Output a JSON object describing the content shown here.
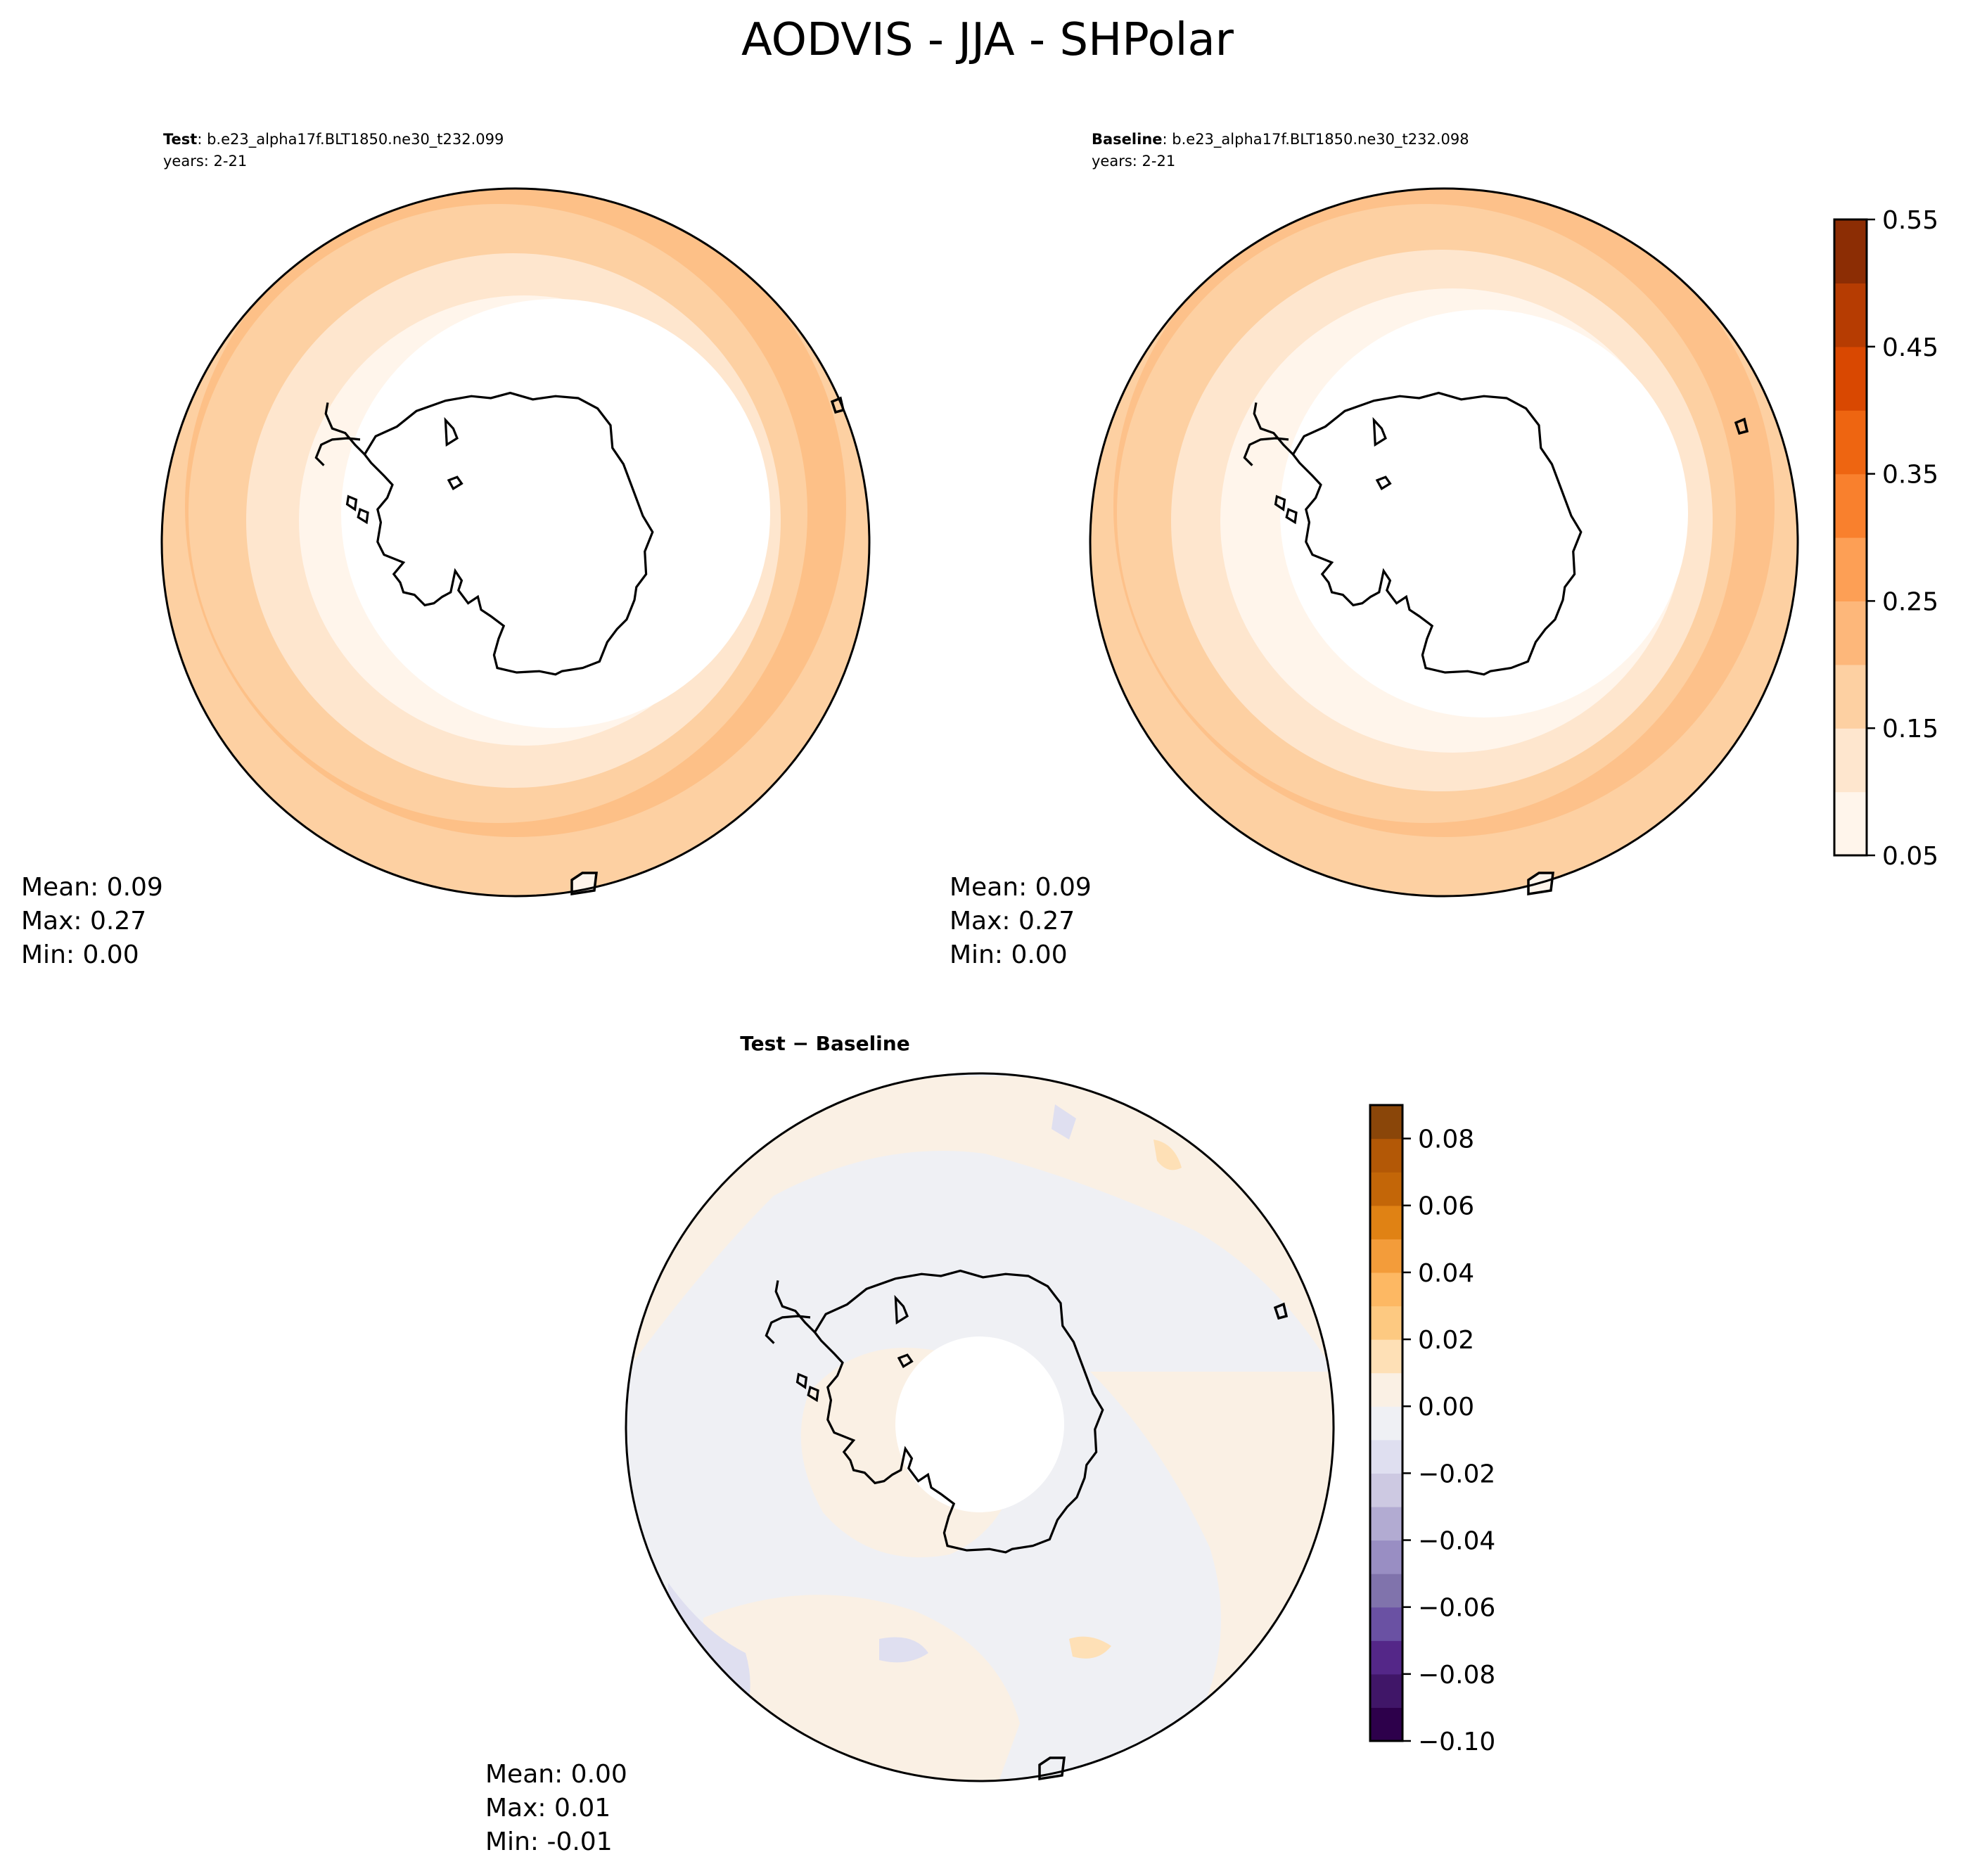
{
  "title": "AODVIS - JJA - SHPolar",
  "panels": [
    {
      "id": "test",
      "label_bold": "Test",
      "label_rest": ": b.e23_alpha17f.BLT1850.ne30_t232.099",
      "years": "years: 2-21",
      "stats": {
        "mean": "Mean:  0.09",
        "max": "Max:  0.27",
        "min": "Min:  0.00"
      }
    },
    {
      "id": "baseline",
      "label_bold": "Baseline",
      "label_rest": ": b.e23_alpha17f.BLT1850.ne30_t232.098",
      "years": "years: 2-21",
      "stats": {
        "mean": "Mean:  0.09",
        "max": "Max:  0.27",
        "min": "Min:  0.00"
      }
    },
    {
      "id": "diff",
      "label_bold": "Test − Baseline",
      "stats": {
        "mean": "Mean:  0.00",
        "max": "Max:  0.01",
        "min": "Min: -0.01"
      }
    }
  ],
  "chart_data": [
    {
      "type": "heatmap",
      "projection": "south-polar-stereographic",
      "panel": "Test",
      "levels": [
        0.05,
        0.1,
        0.15,
        0.2,
        0.25,
        0.3,
        0.35,
        0.4,
        0.45,
        0.5,
        0.55
      ],
      "colors": [
        "#fff5eb",
        "#fee6ce",
        "#fdd0a2",
        "#fdb77a",
        "#fd9f55",
        "#f9802d",
        "#ee6511",
        "#d94801",
        "#b63c02",
        "#8c2d04"
      ],
      "value_rings": [
        {
          "colatitude_deg": 0,
          "value_band": "below 0.05"
        },
        {
          "colatitude_deg": 22,
          "value_band": "0.05-0.10"
        },
        {
          "colatitude_deg": 28,
          "value_band": "0.10-0.15"
        },
        {
          "colatitude_deg": 34,
          "value_band": "0.15-0.20"
        },
        {
          "colatitude_deg": 43,
          "value_band": "0.20-0.25"
        }
      ],
      "stats": {
        "mean": 0.09,
        "max": 0.27,
        "min": 0.0
      }
    },
    {
      "type": "heatmap",
      "projection": "south-polar-stereographic",
      "panel": "Baseline",
      "levels": [
        0.05,
        0.1,
        0.15,
        0.2,
        0.25,
        0.3,
        0.35,
        0.4,
        0.45,
        0.5,
        0.55
      ],
      "colors": [
        "#fff5eb",
        "#fee6ce",
        "#fdd0a2",
        "#fdb77a",
        "#fd9f55",
        "#f9802d",
        "#ee6511",
        "#d94801",
        "#b63c02",
        "#8c2d04"
      ],
      "value_rings": [
        {
          "colatitude_deg": 0,
          "value_band": "below 0.05"
        },
        {
          "colatitude_deg": 22,
          "value_band": "0.05-0.10"
        },
        {
          "colatitude_deg": 28,
          "value_band": "0.10-0.15"
        },
        {
          "colatitude_deg": 34,
          "value_band": "0.15-0.20"
        },
        {
          "colatitude_deg": 43,
          "value_band": "0.20-0.25"
        }
      ],
      "stats": {
        "mean": 0.09,
        "max": 0.27,
        "min": 0.0
      }
    },
    {
      "type": "heatmap",
      "projection": "south-polar-stereographic",
      "panel": "Test − Baseline",
      "levels": [
        -0.1,
        -0.09,
        -0.08,
        -0.07,
        -0.06,
        -0.05,
        -0.04,
        -0.03,
        -0.02,
        -0.01,
        0.0,
        0.01,
        0.02,
        0.03,
        0.04,
        0.05,
        0.06,
        0.07,
        0.08,
        0.09
      ],
      "colors": [
        "#2d004b",
        "#401668",
        "#542788",
        "#6a51a3",
        "#8073ac",
        "#998ec3",
        "#b2abd2",
        "#cdc9e2",
        "#dfdff0",
        "#eff0f4",
        "#faf0e4",
        "#fee0b6",
        "#fdc981",
        "#fdb863",
        "#f39c3a",
        "#e08214",
        "#c36608",
        "#b35806",
        "#8a4609"
      ],
      "stats": {
        "mean": 0.0,
        "max": 0.01,
        "min": -0.01
      }
    }
  ],
  "colorbars": [
    {
      "id": "abs",
      "tick_labels": [
        "0.05",
        "0.15",
        "0.25",
        "0.35",
        "0.45",
        "0.55"
      ],
      "tick_values": [
        0.05,
        0.15,
        0.25,
        0.35,
        0.45,
        0.55
      ],
      "range": [
        0.05,
        0.55
      ]
    },
    {
      "id": "diff",
      "tick_labels": [
        "−0.10",
        "−0.08",
        "−0.06",
        "−0.04",
        "−0.02",
        "0.00",
        "0.02",
        "0.04",
        "0.06",
        "0.08"
      ],
      "tick_values": [
        -0.1,
        -0.08,
        -0.06,
        -0.04,
        -0.02,
        0.0,
        0.02,
        0.04,
        0.06,
        0.08
      ],
      "range": [
        -0.1,
        0.09
      ]
    }
  ],
  "colors": {
    "outline": "#000000",
    "abs_colorbar": [
      "#fff5eb",
      "#fee6ce",
      "#fdd0a2",
      "#fdb77a",
      "#fd9f55",
      "#f9802d",
      "#ee6511",
      "#d94801",
      "#b63c02",
      "#8c2d04"
    ],
    "diff_colorbar": [
      "#2d004b",
      "#401668",
      "#542788",
      "#6a51a3",
      "#8073ac",
      "#998ec3",
      "#b2abd2",
      "#cdc9e2",
      "#dfdff0",
      "#eff0f4",
      "#faf0e4",
      "#fee0b6",
      "#fdc981",
      "#fdb863",
      "#f39c3a",
      "#e08214",
      "#c36608",
      "#b35806",
      "#8a4609"
    ]
  }
}
